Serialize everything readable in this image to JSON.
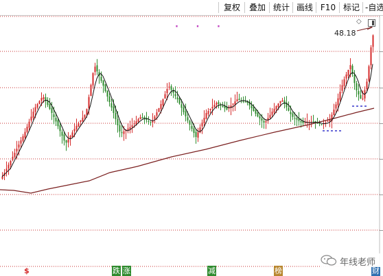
{
  "toolbar": {
    "buttons": [
      "复权",
      "叠加",
      "统计",
      "画线",
      "F10",
      "标记",
      "-自选"
    ]
  },
  "chart": {
    "last_price_label": "48.18",
    "signal_dots": "·   ·   ·"
  },
  "event_tags": [
    {
      "label": "$",
      "color": "#d42a2a"
    },
    {
      "label": "跌",
      "color": "#2e8b2e"
    },
    {
      "label": "涨",
      "color": "#2e8b2e"
    },
    {
      "label": "减",
      "color": "#2e8b2e"
    },
    {
      "label": "榜",
      "color": "#b8862e"
    },
    {
      "label": "财",
      "color": "#2e6fb0"
    }
  ],
  "watermark": {
    "text": "年线老师"
  },
  "colors": {
    "up": "#d42a2a",
    "down": "#2e8b2e",
    "ma_short": "#111111",
    "ma_long": "#7a1f1f",
    "grid": "#c83030"
  }
}
